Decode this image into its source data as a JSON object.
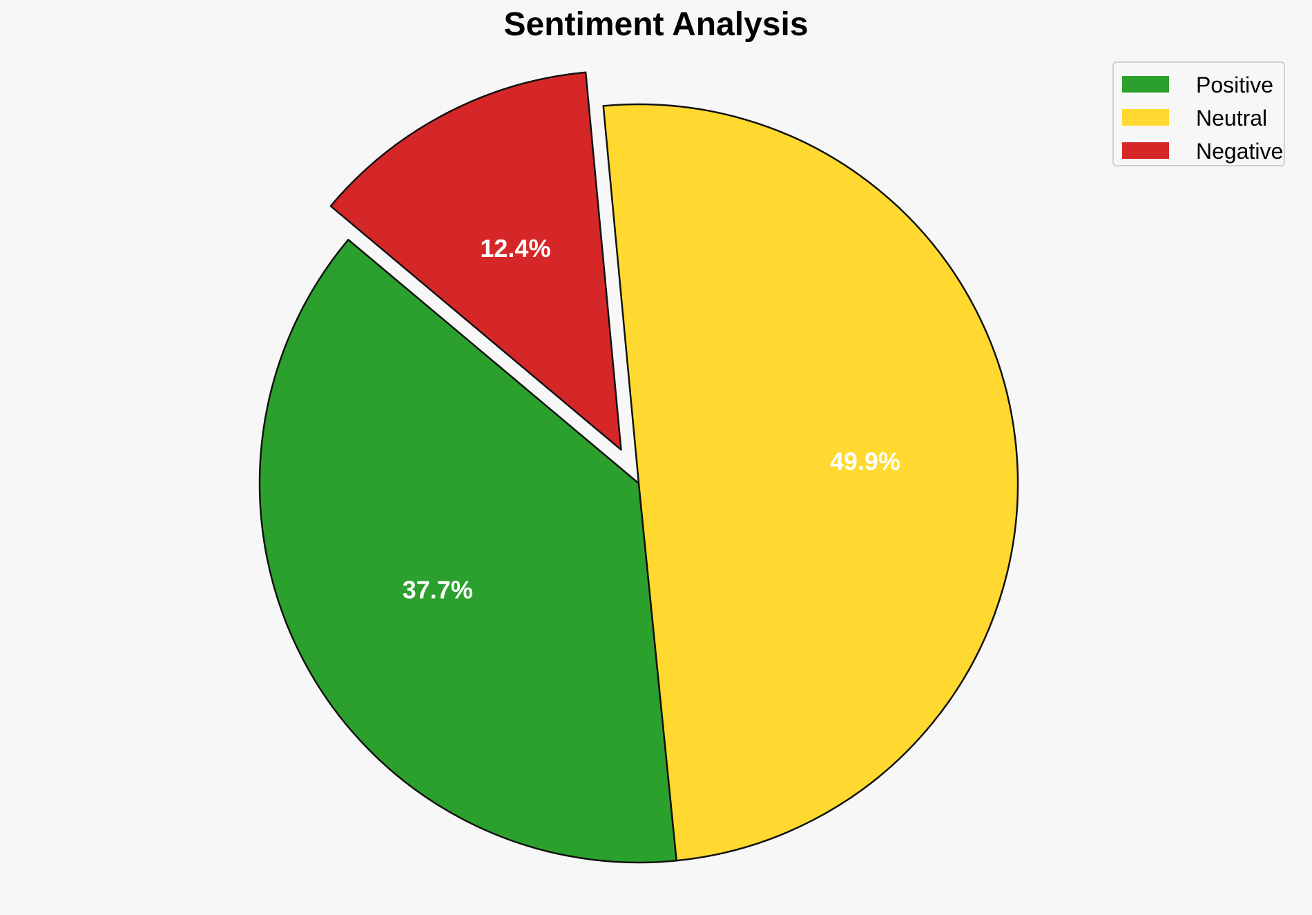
{
  "chart_data": {
    "type": "pie",
    "title": "Sentiment Analysis",
    "categories": [
      "Positive",
      "Neutral",
      "Negative"
    ],
    "values": [
      37.7,
      49.9,
      12.4
    ],
    "labels": [
      "37.7%",
      "49.9%",
      "12.4%"
    ],
    "colors": [
      "#2ca02c",
      "#ffd92f",
      "#d62728"
    ],
    "exploded": [
      false,
      false,
      true
    ],
    "legend": {
      "position": "top-right",
      "entries": [
        "Positive",
        "Neutral",
        "Negative"
      ]
    }
  }
}
